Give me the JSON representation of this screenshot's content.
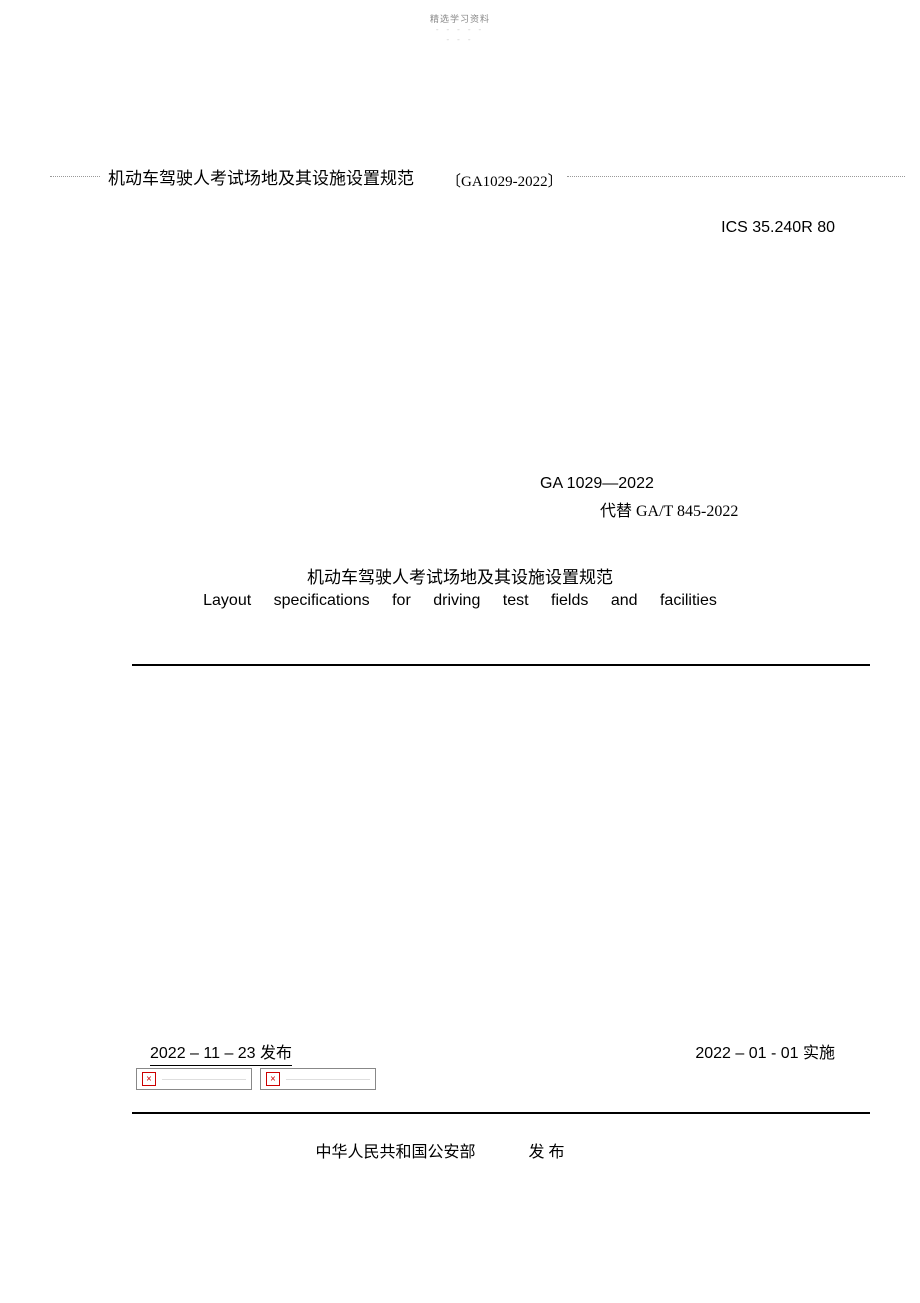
{
  "header": {
    "watermark": "精选学习资料",
    "dashes_line1": "- - - - -",
    "dashes_line2": "- - -"
  },
  "title_row": {
    "main_title": "机动车驾驶人考试场地及其设施设置规范",
    "standard_bracket": "〔GA1029-2022〕"
  },
  "ics_code": "ICS 35.240R 80",
  "standard": {
    "number": "GA 1029—2022",
    "replaces": "代替 GA/T 845-2022"
  },
  "document": {
    "title_zh": "机动车驾驶人考试场地及其设施设置规范",
    "title_en": "Layout specifications for driving test fields and facilities"
  },
  "dates": {
    "publish": "2022 – 11 – 23 发布",
    "implement": "2022 – 01 - 01 实施"
  },
  "broken_image_text": "————————————",
  "publisher": {
    "name": "中华人民共和国公安部",
    "action": "发 布"
  },
  "colors": {
    "text": "#000000",
    "watermark": "#888888",
    "dashes": "#cccccc",
    "dotted_line": "#999999",
    "error_red": "#cc0000",
    "background": "#ffffff"
  }
}
